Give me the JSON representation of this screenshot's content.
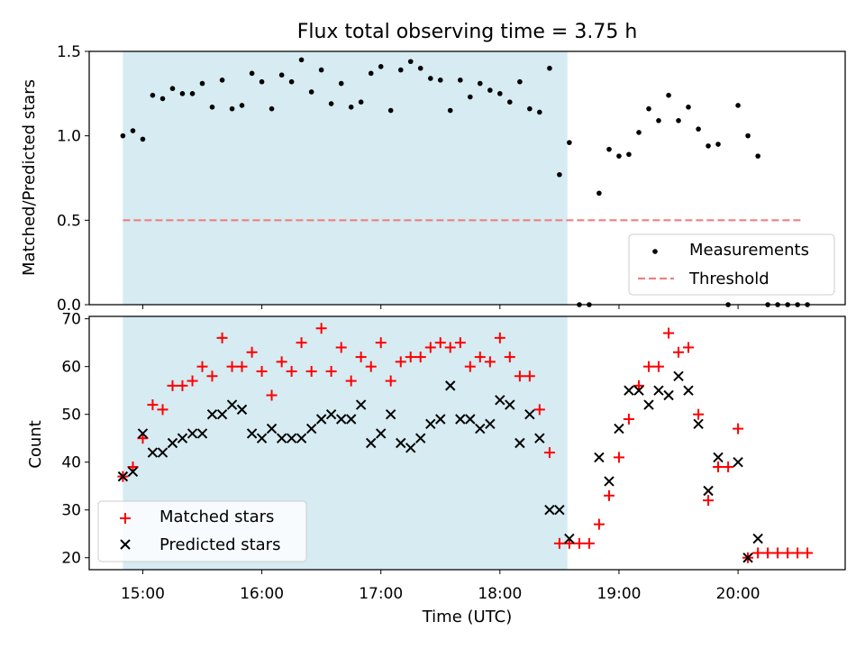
{
  "title": "Flux total observing time = 3.75 h",
  "chart_data": [
    {
      "type": "scatter",
      "ylabel": "Matched/Predicted stars",
      "ylim": [
        0,
        1.5
      ],
      "yticks": [
        "0.0",
        "0.5",
        "1.0",
        "1.5"
      ],
      "shaded_range_hours": [
        14.833,
        18.567
      ],
      "shade_color": "#add8e6",
      "threshold": {
        "name": "Threshold",
        "value": 0.5,
        "color": "#f08080",
        "range_hours": [
          14.833,
          20.55
        ]
      },
      "series": [
        {
          "name": "Measurements",
          "color": "#000000",
          "points": [
            [
              14.833,
              1.0
            ],
            [
              14.917,
              1.03
            ],
            [
              15.0,
              0.98
            ],
            [
              15.083,
              1.24
            ],
            [
              15.167,
              1.22
            ],
            [
              15.25,
              1.28
            ],
            [
              15.333,
              1.25
            ],
            [
              15.417,
              1.25
            ],
            [
              15.5,
              1.31
            ],
            [
              15.583,
              1.17
            ],
            [
              15.667,
              1.33
            ],
            [
              15.75,
              1.16
            ],
            [
              15.833,
              1.18
            ],
            [
              15.917,
              1.37
            ],
            [
              16.0,
              1.32
            ],
            [
              16.083,
              1.16
            ],
            [
              16.167,
              1.36
            ],
            [
              16.25,
              1.32
            ],
            [
              16.333,
              1.45
            ],
            [
              16.417,
              1.26
            ],
            [
              16.5,
              1.39
            ],
            [
              16.583,
              1.19
            ],
            [
              16.667,
              1.31
            ],
            [
              16.75,
              1.17
            ],
            [
              16.833,
              1.2
            ],
            [
              16.917,
              1.37
            ],
            [
              17.0,
              1.41
            ],
            [
              17.083,
              1.15
            ],
            [
              17.167,
              1.39
            ],
            [
              17.25,
              1.44
            ],
            [
              17.333,
              1.4
            ],
            [
              17.417,
              1.34
            ],
            [
              17.5,
              1.33
            ],
            [
              17.583,
              1.15
            ],
            [
              17.667,
              1.33
            ],
            [
              17.75,
              1.23
            ],
            [
              17.833,
              1.31
            ],
            [
              17.917,
              1.27
            ],
            [
              18.0,
              1.25
            ],
            [
              18.083,
              1.2
            ],
            [
              18.167,
              1.32
            ],
            [
              18.25,
              1.16
            ],
            [
              18.333,
              1.14
            ],
            [
              18.417,
              1.4
            ],
            [
              18.5,
              0.77
            ],
            [
              18.583,
              0.96
            ],
            [
              18.667,
              0.0
            ],
            [
              18.75,
              0.0
            ],
            [
              18.833,
              0.66
            ],
            [
              18.917,
              0.92
            ],
            [
              19.0,
              0.88
            ],
            [
              19.083,
              0.89
            ],
            [
              19.167,
              1.02
            ],
            [
              19.25,
              1.16
            ],
            [
              19.333,
              1.09
            ],
            [
              19.417,
              1.24
            ],
            [
              19.5,
              1.09
            ],
            [
              19.583,
              1.17
            ],
            [
              19.667,
              1.04
            ],
            [
              19.75,
              0.94
            ],
            [
              19.833,
              0.95
            ],
            [
              19.917,
              0.0
            ],
            [
              20.0,
              1.18
            ],
            [
              20.083,
              1.0
            ],
            [
              20.167,
              0.88
            ],
            [
              20.25,
              0.0
            ],
            [
              20.333,
              0.0
            ],
            [
              20.417,
              0.0
            ],
            [
              20.5,
              0.0
            ],
            [
              20.583,
              0.0
            ]
          ]
        }
      ],
      "legend": {
        "placement": "lower right",
        "entries": [
          "Measurements",
          "Threshold"
        ]
      }
    },
    {
      "type": "scatter",
      "xlabel": "Time (UTC)",
      "ylabel": "Count",
      "ylim": [
        17.5,
        70.5
      ],
      "yticks": [
        "20",
        "30",
        "40",
        "50",
        "60",
        "70"
      ],
      "xticks": [
        "15:00",
        "16:00",
        "17:00",
        "18:00",
        "19:00",
        "20:00"
      ],
      "xlim_hours": [
        14.55,
        20.9
      ],
      "shaded_range_hours": [
        14.833,
        18.567
      ],
      "shade_color": "#add8e6",
      "series": [
        {
          "name": "Matched stars",
          "marker": "plus",
          "color": "#ff0000",
          "points": [
            [
              14.833,
              37
            ],
            [
              14.917,
              39
            ],
            [
              15.0,
              45
            ],
            [
              15.083,
              52
            ],
            [
              15.167,
              51
            ],
            [
              15.25,
              56
            ],
            [
              15.333,
              56
            ],
            [
              15.417,
              57
            ],
            [
              15.5,
              60
            ],
            [
              15.583,
              58
            ],
            [
              15.667,
              66
            ],
            [
              15.75,
              60
            ],
            [
              15.833,
              60
            ],
            [
              15.917,
              63
            ],
            [
              16.0,
              59
            ],
            [
              16.083,
              54
            ],
            [
              16.167,
              61
            ],
            [
              16.25,
              59
            ],
            [
              16.333,
              65
            ],
            [
              16.417,
              59
            ],
            [
              16.5,
              68
            ],
            [
              16.583,
              59
            ],
            [
              16.667,
              64
            ],
            [
              16.75,
              57
            ],
            [
              16.833,
              62
            ],
            [
              16.917,
              60
            ],
            [
              17.0,
              65
            ],
            [
              17.083,
              57
            ],
            [
              17.167,
              61
            ],
            [
              17.25,
              62
            ],
            [
              17.333,
              62
            ],
            [
              17.417,
              64
            ],
            [
              17.5,
              65
            ],
            [
              17.583,
              64
            ],
            [
              17.667,
              65
            ],
            [
              17.75,
              60
            ],
            [
              17.833,
              62
            ],
            [
              17.917,
              61
            ],
            [
              18.0,
              66
            ],
            [
              18.083,
              62
            ],
            [
              18.167,
              58
            ],
            [
              18.25,
              58
            ],
            [
              18.333,
              51
            ],
            [
              18.417,
              42
            ],
            [
              18.5,
              23
            ],
            [
              18.583,
              23
            ],
            [
              18.667,
              23
            ],
            [
              18.75,
              23
            ],
            [
              18.833,
              27
            ],
            [
              18.917,
              33
            ],
            [
              19.0,
              41
            ],
            [
              19.083,
              49
            ],
            [
              19.167,
              56
            ],
            [
              19.25,
              60
            ],
            [
              19.333,
              60
            ],
            [
              19.417,
              67
            ],
            [
              19.5,
              63
            ],
            [
              19.583,
              64
            ],
            [
              19.667,
              50
            ],
            [
              19.75,
              32
            ],
            [
              19.833,
              39
            ],
            [
              19.917,
              39
            ],
            [
              20.0,
              47
            ],
            [
              20.083,
              20
            ],
            [
              20.167,
              21
            ],
            [
              20.25,
              21
            ],
            [
              20.333,
              21
            ],
            [
              20.417,
              21
            ],
            [
              20.5,
              21
            ],
            [
              20.583,
              21
            ]
          ]
        },
        {
          "name": "Predicted stars",
          "marker": "x",
          "color": "#000000",
          "points": [
            [
              14.833,
              37
            ],
            [
              14.917,
              38
            ],
            [
              15.0,
              46
            ],
            [
              15.083,
              42
            ],
            [
              15.167,
              42
            ],
            [
              15.25,
              44
            ],
            [
              15.333,
              45
            ],
            [
              15.417,
              46
            ],
            [
              15.5,
              46
            ],
            [
              15.583,
              50
            ],
            [
              15.667,
              50
            ],
            [
              15.75,
              52
            ],
            [
              15.833,
              51
            ],
            [
              15.917,
              46
            ],
            [
              16.0,
              45
            ],
            [
              16.083,
              47
            ],
            [
              16.167,
              45
            ],
            [
              16.25,
              45
            ],
            [
              16.333,
              45
            ],
            [
              16.417,
              47
            ],
            [
              16.5,
              49
            ],
            [
              16.583,
              50
            ],
            [
              16.667,
              49
            ],
            [
              16.75,
              49
            ],
            [
              16.833,
              52
            ],
            [
              16.917,
              44
            ],
            [
              17.0,
              46
            ],
            [
              17.083,
              50
            ],
            [
              17.167,
              44
            ],
            [
              17.25,
              43
            ],
            [
              17.333,
              45
            ],
            [
              17.417,
              48
            ],
            [
              17.5,
              49
            ],
            [
              17.583,
              56
            ],
            [
              17.667,
              49
            ],
            [
              17.75,
              49
            ],
            [
              17.833,
              47
            ],
            [
              17.917,
              48
            ],
            [
              18.0,
              53
            ],
            [
              18.083,
              52
            ],
            [
              18.167,
              44
            ],
            [
              18.25,
              50
            ],
            [
              18.333,
              45
            ],
            [
              18.417,
              30
            ],
            [
              18.5,
              30
            ],
            [
              18.583,
              24
            ],
            [
              18.833,
              41
            ],
            [
              18.917,
              36
            ],
            [
              19.0,
              47
            ],
            [
              19.083,
              55
            ],
            [
              19.167,
              55
            ],
            [
              19.25,
              52
            ],
            [
              19.333,
              55
            ],
            [
              19.417,
              54
            ],
            [
              19.5,
              58
            ],
            [
              19.583,
              55
            ],
            [
              19.667,
              48
            ],
            [
              19.75,
              34
            ],
            [
              19.833,
              41
            ],
            [
              20.0,
              40
            ],
            [
              20.083,
              20
            ],
            [
              20.167,
              24
            ]
          ]
        }
      ],
      "legend": {
        "placement": "lower left",
        "entries": [
          "Matched stars",
          "Predicted stars"
        ]
      }
    }
  ]
}
